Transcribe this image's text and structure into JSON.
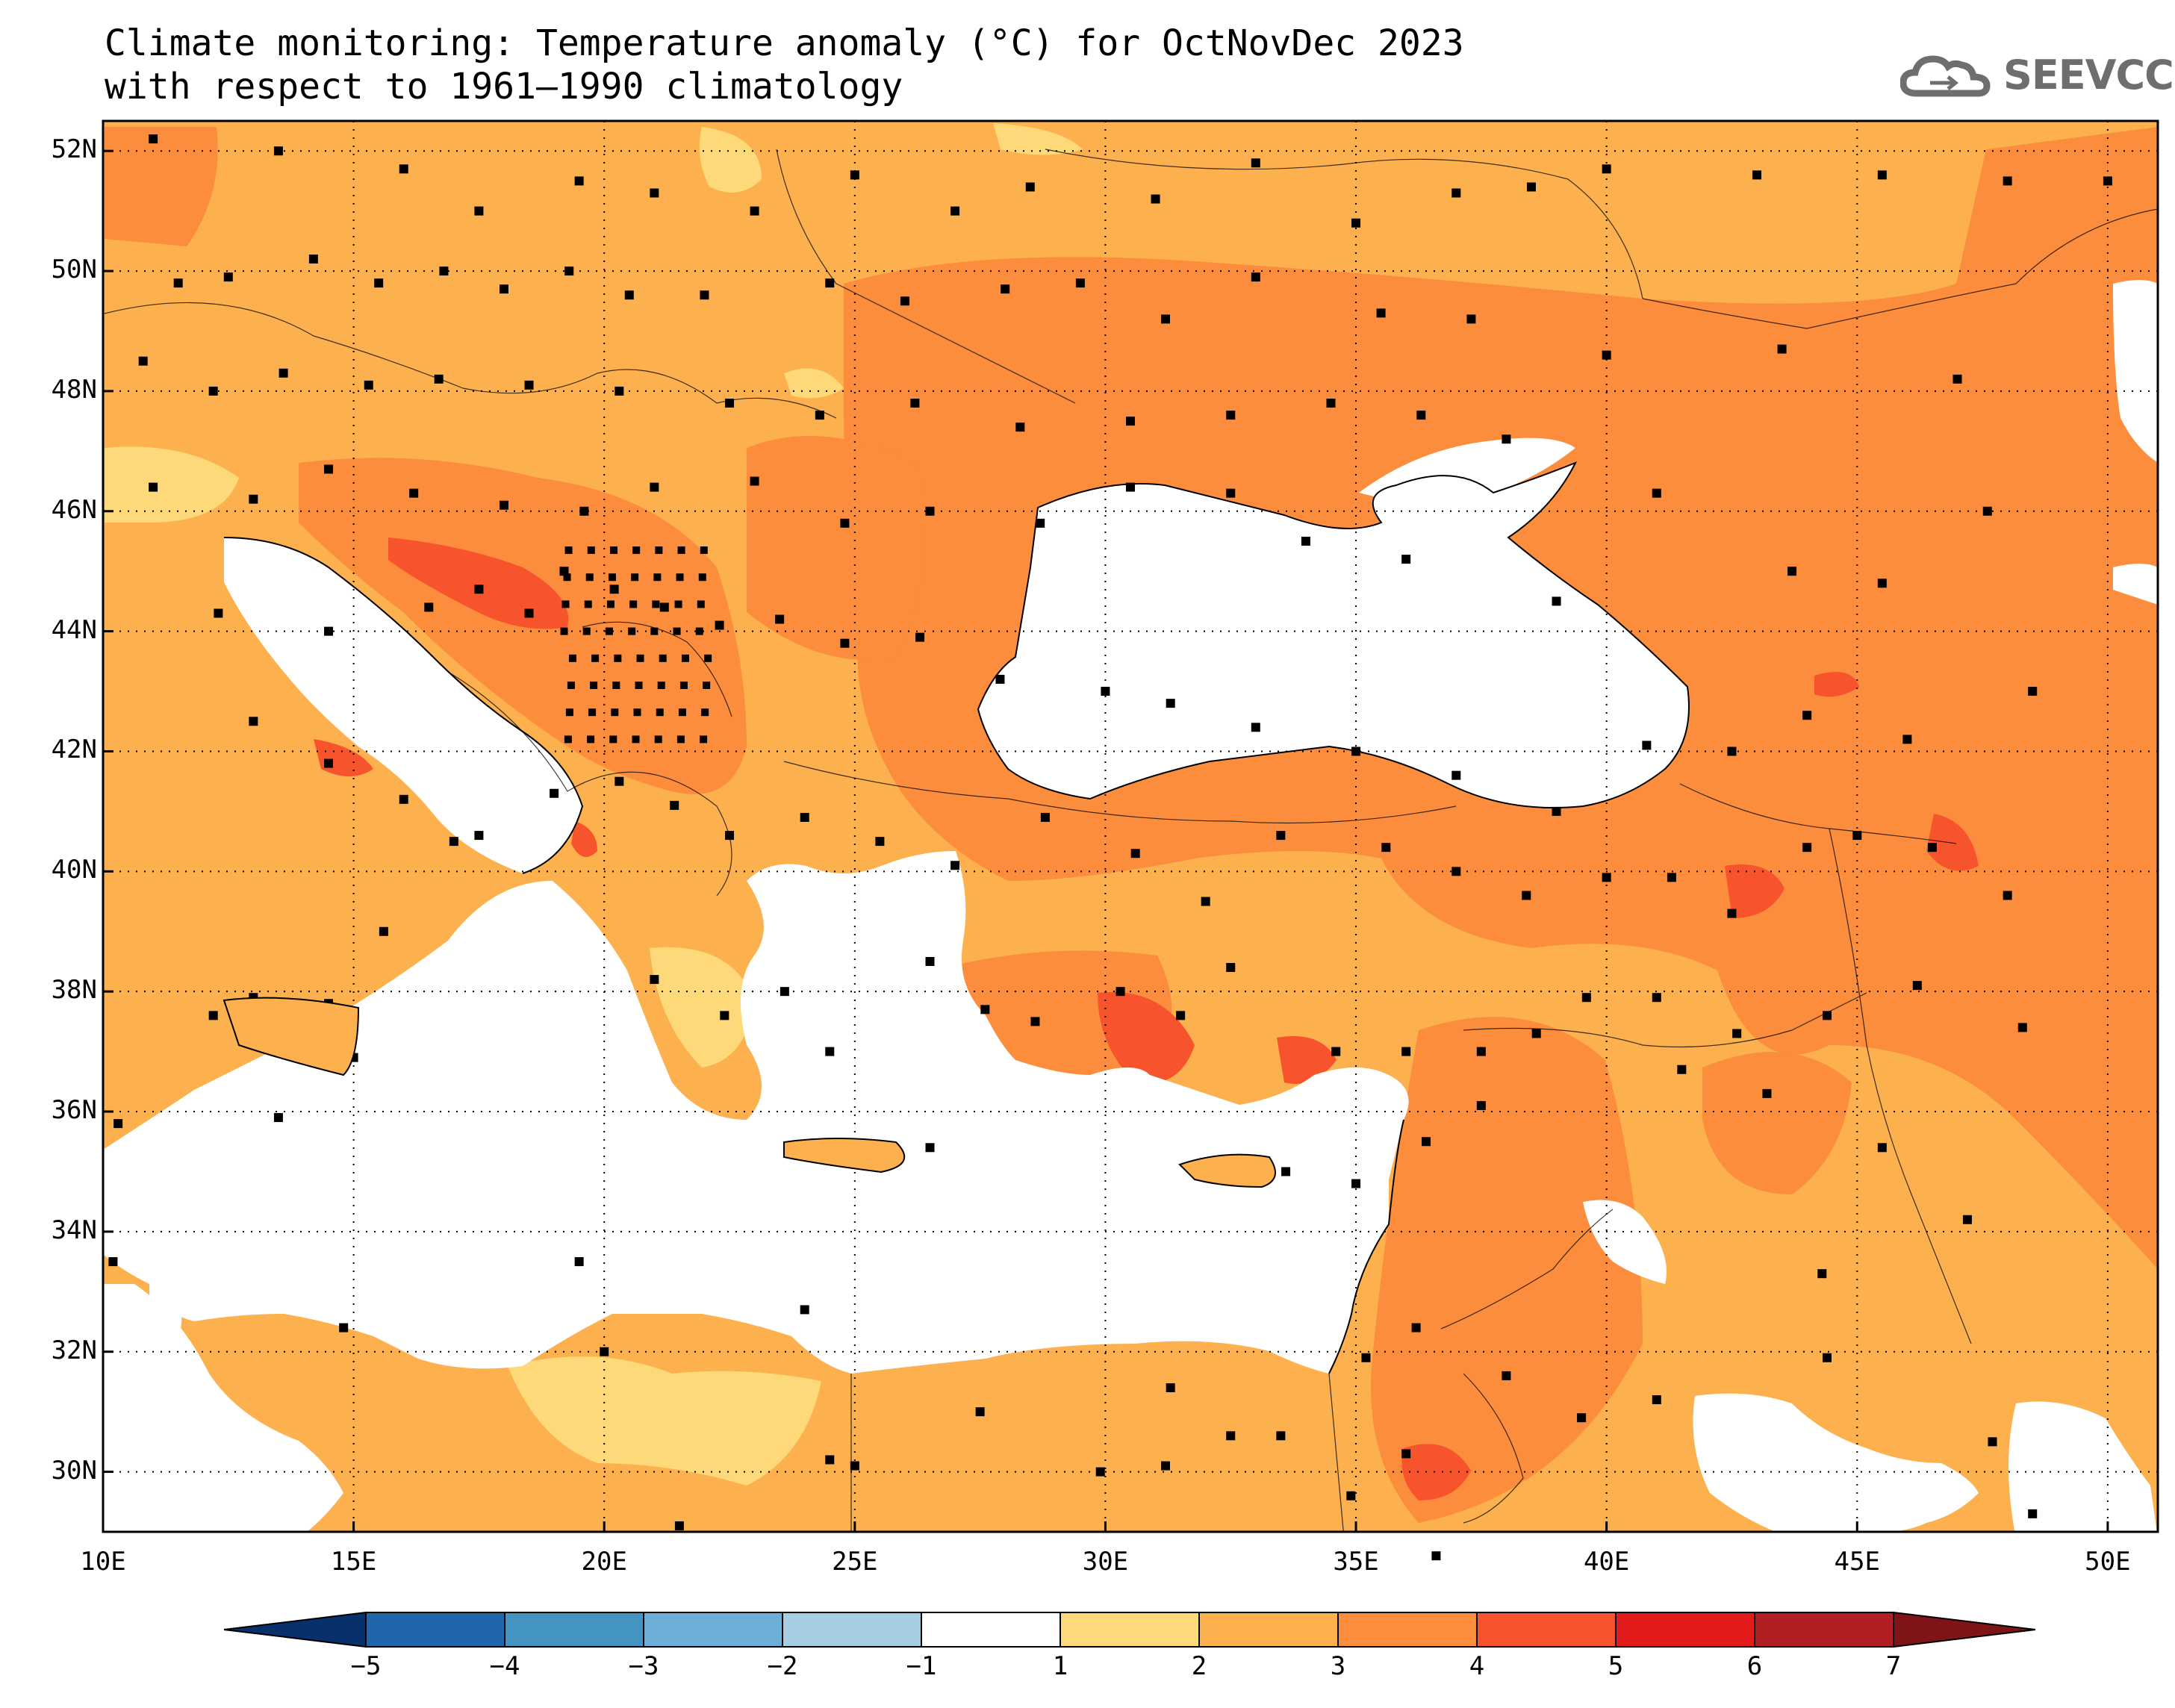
{
  "title": {
    "line1": "Climate monitoring: Temperature anomaly (°C) for OctNovDec 2023",
    "line2": "with respect to 1961–1990 climatology"
  },
  "logo": {
    "icon": "cloud-logo-icon",
    "text": "SEEVCCC"
  },
  "axes": {
    "lon_min": 10,
    "lon_max": 51,
    "lat_min": 29,
    "lat_max": 52.5,
    "x_ticks": [
      "10E",
      "15E",
      "20E",
      "25E",
      "30E",
      "35E",
      "40E",
      "45E",
      "50E"
    ],
    "y_ticks": [
      "52N",
      "50N",
      "48N",
      "46N",
      "44N",
      "42N",
      "40N",
      "38N",
      "36N",
      "34N",
      "32N",
      "30N"
    ],
    "gridlines": "dotted"
  },
  "colorbar": {
    "ticks": [
      "-5",
      "-4",
      "-3",
      "-2",
      "-1",
      "1",
      "2",
      "3",
      "4",
      "5",
      "6",
      "7"
    ],
    "colors": [
      "#08306b",
      "#2066ac",
      "#4393c3",
      "#6baed6",
      "#a6cde3",
      "#ffffff",
      "#fdd97a",
      "#fdb04e",
      "#fb8d3d",
      "#f7532c",
      "#e21b1c",
      "#b11f23",
      "#7f1416"
    ]
  }
}
